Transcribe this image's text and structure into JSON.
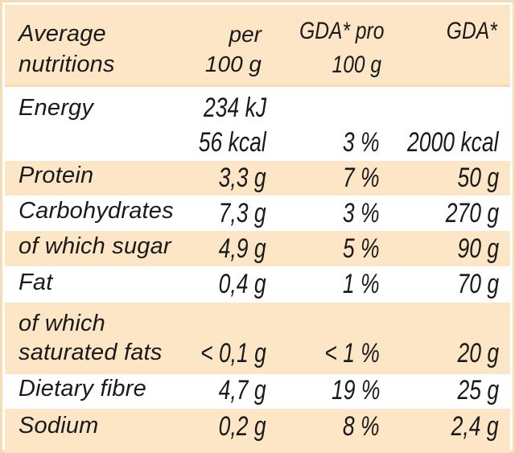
{
  "header": {
    "col_name_line1": "Average",
    "col_name_line2": "nutritions",
    "col_per_line1": "per",
    "col_per_line2": "100 g",
    "col_gda_pro_line1": "GDA* pro",
    "col_gda_pro_line2": "100 g",
    "col_gda": "GDA*"
  },
  "rows": [
    {
      "name": "Energy",
      "per_100g": "234 kJ",
      "per_100g_line2": "56 kcal",
      "gda_pro_100g": "3 %",
      "gda": "2000 kcal"
    },
    {
      "name": "Protein",
      "per_100g": "3,3 g",
      "gda_pro_100g": "7 %",
      "gda": "50 g"
    },
    {
      "name": "Carbohydrates",
      "per_100g": "7,3 g",
      "gda_pro_100g": "3 %",
      "gda": "270 g"
    },
    {
      "name": "of which sugar",
      "per_100g": "4,9 g",
      "gda_pro_100g": "5 %",
      "gda": "90 g"
    },
    {
      "name": "Fat",
      "per_100g": "0,4 g",
      "gda_pro_100g": "1 %",
      "gda": "70 g"
    },
    {
      "name_line1": "of which",
      "name_line2": "saturated fats",
      "per_100g": "< 0,1 g",
      "gda_pro_100g": "< 1 %",
      "gda": "20 g"
    },
    {
      "name": "Dietary fibre",
      "per_100g": "4,7 g",
      "gda_pro_100g": "19 %",
      "gda": "25 g"
    },
    {
      "name": "Sodium",
      "per_100g": "0,2 g",
      "gda_pro_100g": "8 %",
      "gda": "2,4 g"
    }
  ],
  "colors": {
    "shade": "#fde6c6",
    "border": "#f6dcb4",
    "text": "#1a1a1a"
  }
}
